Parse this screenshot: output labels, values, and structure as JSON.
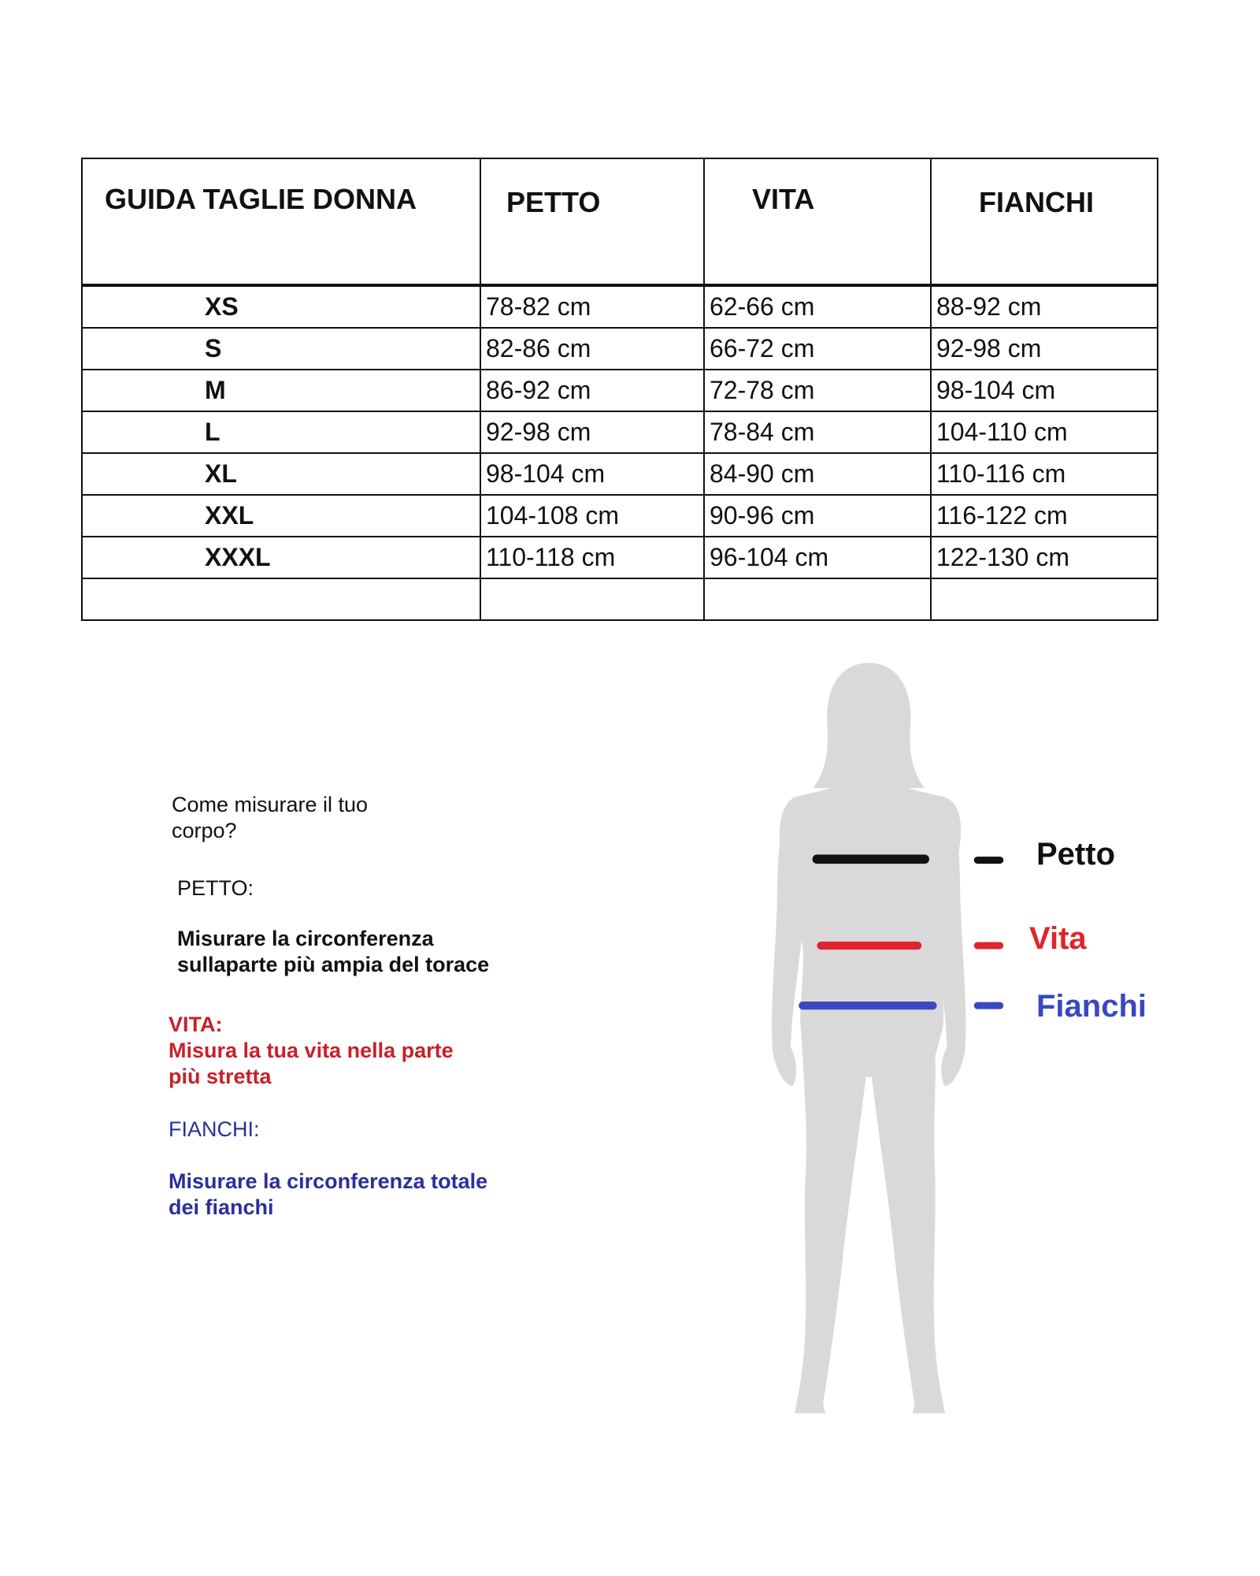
{
  "table": {
    "headers": [
      "GUIDA TAGLIE DONNA",
      "PETTO",
      "VITA",
      "FIANCHI"
    ],
    "rows": [
      {
        "size": "XS",
        "petto": "78-82 cm",
        "vita": "62-66 cm",
        "fianchi": "88-92 cm"
      },
      {
        "size": "S",
        "petto": "82-86 cm",
        "vita": "66-72 cm",
        "fianchi": "92-98 cm"
      },
      {
        "size": "M",
        "petto": "86-92 cm",
        "vita": "72-78 cm",
        "fianchi": "98-104 cm"
      },
      {
        "size": "L",
        "petto": "92-98 cm",
        "vita": "78-84 cm",
        "fianchi": "104-110 cm"
      },
      {
        "size": "XL",
        "petto": "98-104 cm",
        "vita": "84-90 cm",
        "fianchi": "110-116 cm"
      },
      {
        "size": "XXL",
        "petto": "104-108 cm",
        "vita": "90-96 cm",
        "fianchi": "116-122 cm"
      },
      {
        "size": "XXXL",
        "petto": "110-118 cm",
        "vita": "96-104 cm",
        "fianchi": "122-130 cm"
      }
    ]
  },
  "instructions": {
    "title_line1": "Come misurare il tuo",
    "title_line2": "corpo?",
    "petto_heading": "PETTO:",
    "petto_line1": "Misurare la circonferenza",
    "petto_line2": "sullaparte più ampia del torace",
    "vita_heading": "VITA:",
    "vita_line1": "Misura la tua vita nella parte",
    "vita_line2": "più stretta",
    "fianchi_heading": "FIANCHI:",
    "fianchi_line1": "Misurare la circonferenza totale",
    "fianchi_line2": "dei fianchi"
  },
  "figure": {
    "legend": [
      {
        "label": "Petto",
        "color": "#111111"
      },
      {
        "label": "Vita",
        "color": "#e0242c"
      },
      {
        "label": "Fianchi",
        "color": "#3a48c0"
      }
    ],
    "silhouette_color": "#d9d9d9"
  }
}
